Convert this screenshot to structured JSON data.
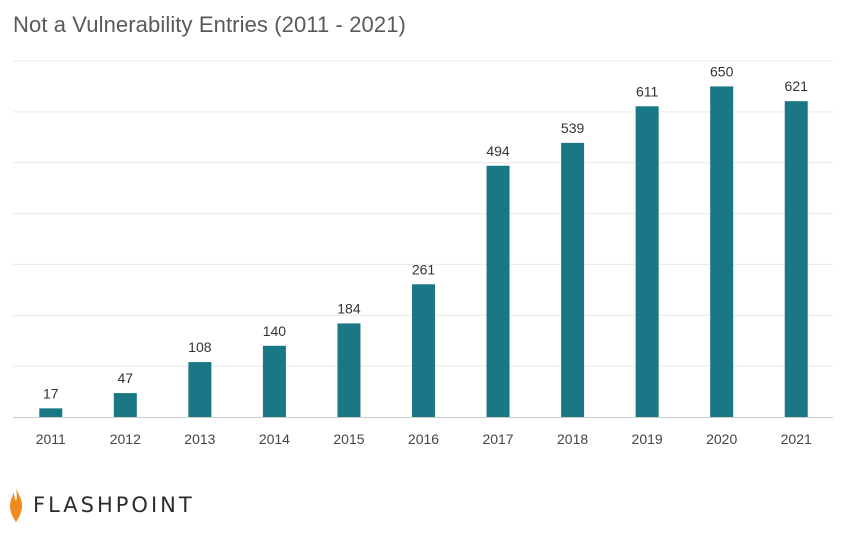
{
  "title": "Not a Vulnerability Entries (2011 - 2021)",
  "logo": {
    "name": "flame-logo",
    "text": "FLASHPOINT"
  },
  "colors": {
    "bar": "#1a7785",
    "grid": "#e9e9e9",
    "axis": "#cccccc",
    "flame": "#f08a1c"
  },
  "chart_data": {
    "type": "bar",
    "title": "Not a Vulnerability Entries (2011 - 2021)",
    "categories": [
      "2011",
      "2012",
      "2013",
      "2014",
      "2015",
      "2016",
      "2017",
      "2018",
      "2019",
      "2020",
      "2021"
    ],
    "series": [
      {
        "values": [
          17,
          47,
          108,
          140,
          184,
          261,
          494,
          539,
          611,
          650,
          621
        ]
      }
    ],
    "ylim": [
      0,
      700
    ],
    "grid": true,
    "data_labels": true,
    "legend": "none"
  }
}
